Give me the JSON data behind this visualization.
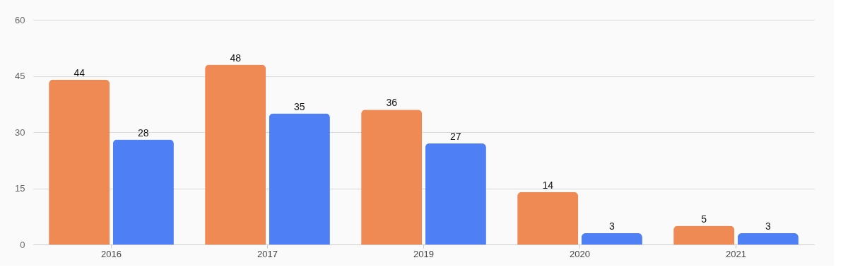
{
  "chart_data": {
    "type": "bar",
    "categories": [
      "2016",
      "2017",
      "2019",
      "2020",
      "2021"
    ],
    "series": [
      {
        "color": "#f08a55",
        "values": [
          44,
          48,
          36,
          14,
          5
        ]
      },
      {
        "color": "#4f7ff5",
        "values": [
          28,
          35,
          27,
          3,
          3
        ]
      }
    ],
    "ylim": [
      0,
      60
    ],
    "yticks": [
      0,
      15,
      30,
      45,
      60
    ],
    "grid": "y",
    "data_labels": true,
    "legend": false
  }
}
